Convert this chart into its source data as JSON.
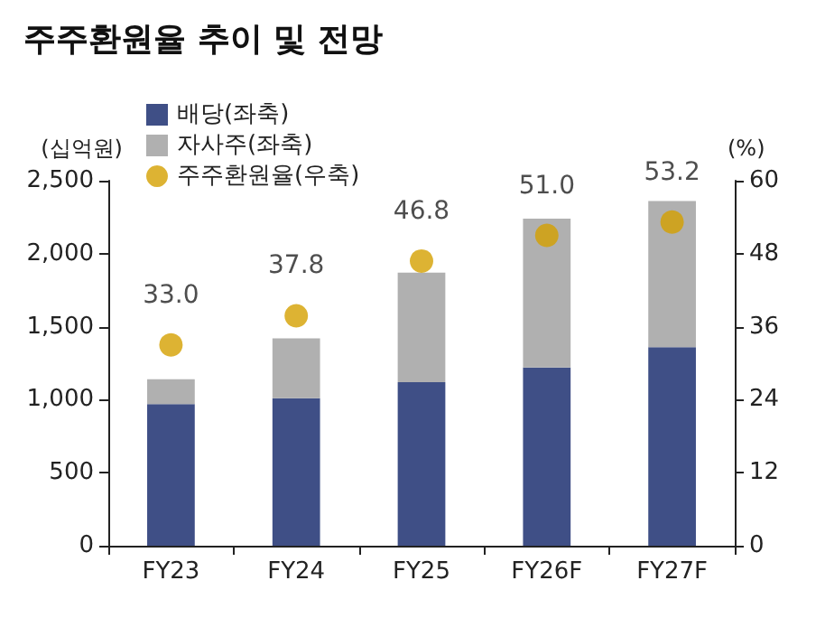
{
  "chart_data": {
    "type": "bar",
    "title": "주주환원율 추이 및 전망",
    "ylabel": "(십억원)",
    "y2label": "(%)",
    "categories": [
      "FY23",
      "FY24",
      "FY25",
      "FY26F",
      "FY27F"
    ],
    "stacked": true,
    "series": [
      {
        "name": "배당(좌축)",
        "color": "#3f4f86",
        "values": [
          970,
          1010,
          1120,
          1220,
          1360
        ]
      },
      {
        "name": "자사주(좌축)",
        "color": "#b0b0b0",
        "values": [
          170,
          410,
          750,
          1020,
          1000
        ]
      },
      {
        "name": "주주환원율(우축)",
        "type": "scatter",
        "axis": "y2",
        "color": "#d4a000",
        "values": [
          33.0,
          37.8,
          46.8,
          51.0,
          53.2
        ],
        "value_labels": [
          "33.0",
          "37.8",
          "46.8",
          "51.0",
          "53.2"
        ]
      }
    ],
    "ylim": [
      0,
      2500
    ],
    "yticks": [
      0,
      500,
      {
        "value": 1000,
        "label": "1,000"
      },
      {
        "value": 1500,
        "label": "1,500"
      },
      {
        "value": 2000,
        "label": "2,000"
      },
      {
        "value": 2500,
        "label": "2,500"
      }
    ],
    "y2lim": [
      0,
      60
    ],
    "y2ticks": [
      0,
      12,
      24,
      36,
      48,
      60
    ],
    "legend": "top left",
    "grid": false,
    "marker": "circle"
  }
}
